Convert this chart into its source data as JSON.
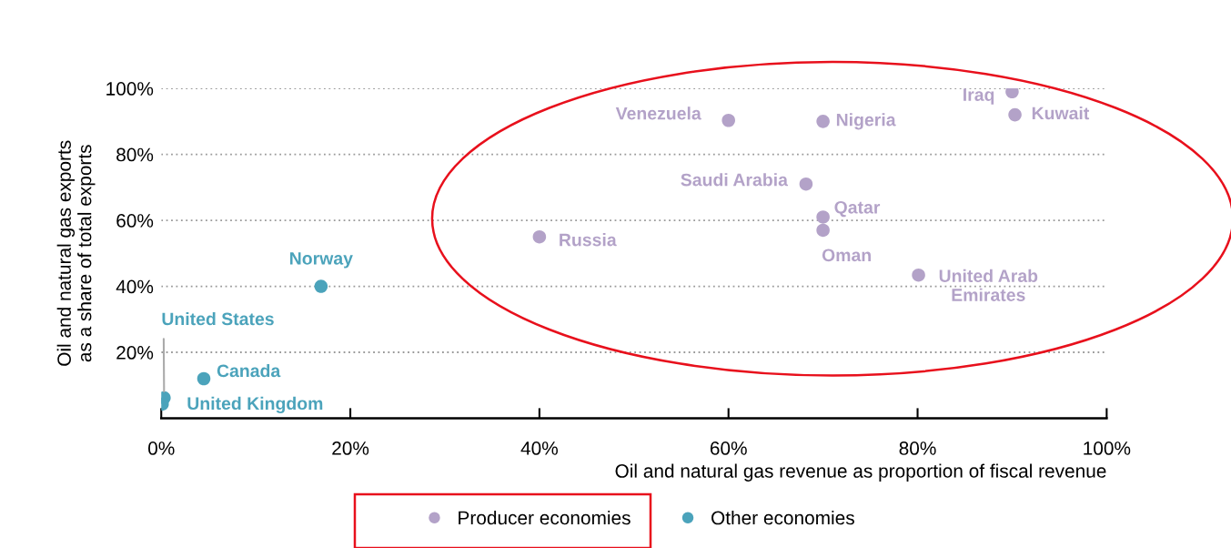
{
  "chart_data": {
    "type": "scatter",
    "xlabel": "Oil and natural gas revenue as proportion of fiscal revenue",
    "ylabel": "Oil and natural gas exports\nas a share of total exports",
    "series": [
      {
        "name": "Producer economies",
        "color": "#b3a2c8",
        "x": [
          90,
          90.3,
          60,
          70,
          68.2,
          70,
          70,
          80.1,
          40
        ],
        "values": [
          99,
          92,
          90.3,
          90,
          71,
          61,
          57,
          43.4,
          55
        ]
      },
      {
        "name": "Other economies",
        "color": "#4ba3bb",
        "x": [
          16.9,
          4.5,
          0.3,
          0.1
        ],
        "values": [
          40,
          12,
          6.2,
          4.3
        ]
      }
    ],
    "annotations": [
      {
        "text": "Iraq",
        "x": 90,
        "y": 99
      },
      {
        "text": "Kuwait",
        "x": 90.3,
        "y": 92
      },
      {
        "text": "Venezuela",
        "x": 60,
        "y": 90.3
      },
      {
        "text": "Nigeria",
        "x": 70,
        "y": 90
      },
      {
        "text": "Saudi Arabia",
        "x": 68.2,
        "y": 71
      },
      {
        "text": "Qatar",
        "x": 70,
        "y": 61
      },
      {
        "text": "Oman",
        "x": 70,
        "y": 57
      },
      {
        "text": "United Arab\nEmirates",
        "x": 80.1,
        "y": 43.4
      },
      {
        "text": "Russia",
        "x": 40,
        "y": 55
      },
      {
        "text": "Norway",
        "x": 16.9,
        "y": 40
      },
      {
        "text": "Canada",
        "x": 4.5,
        "y": 12
      },
      {
        "text": "United States",
        "x": 0.3,
        "y": 6.2
      },
      {
        "text": "United Kingdom",
        "x": 0.1,
        "y": 4.3
      }
    ],
    "xlim": [
      0,
      100
    ],
    "xticks": [
      {
        "value": 0,
        "label": "0%"
      },
      {
        "value": 20,
        "label": "20%"
      },
      {
        "value": 40,
        "label": "40%"
      },
      {
        "value": 60,
        "label": "60%"
      },
      {
        "value": 80,
        "label": "80%"
      },
      {
        "value": 100,
        "label": "100%"
      }
    ],
    "ylim": [
      0,
      100
    ],
    "yticks": [
      {
        "value": 20,
        "label": "20%"
      },
      {
        "value": 40,
        "label": "40%"
      },
      {
        "value": 60,
        "label": "60%"
      },
      {
        "value": 80,
        "label": "80%"
      },
      {
        "value": 100,
        "label": "100%"
      }
    ],
    "grid": "y",
    "legend": "bottom",
    "marker": "circle"
  }
}
